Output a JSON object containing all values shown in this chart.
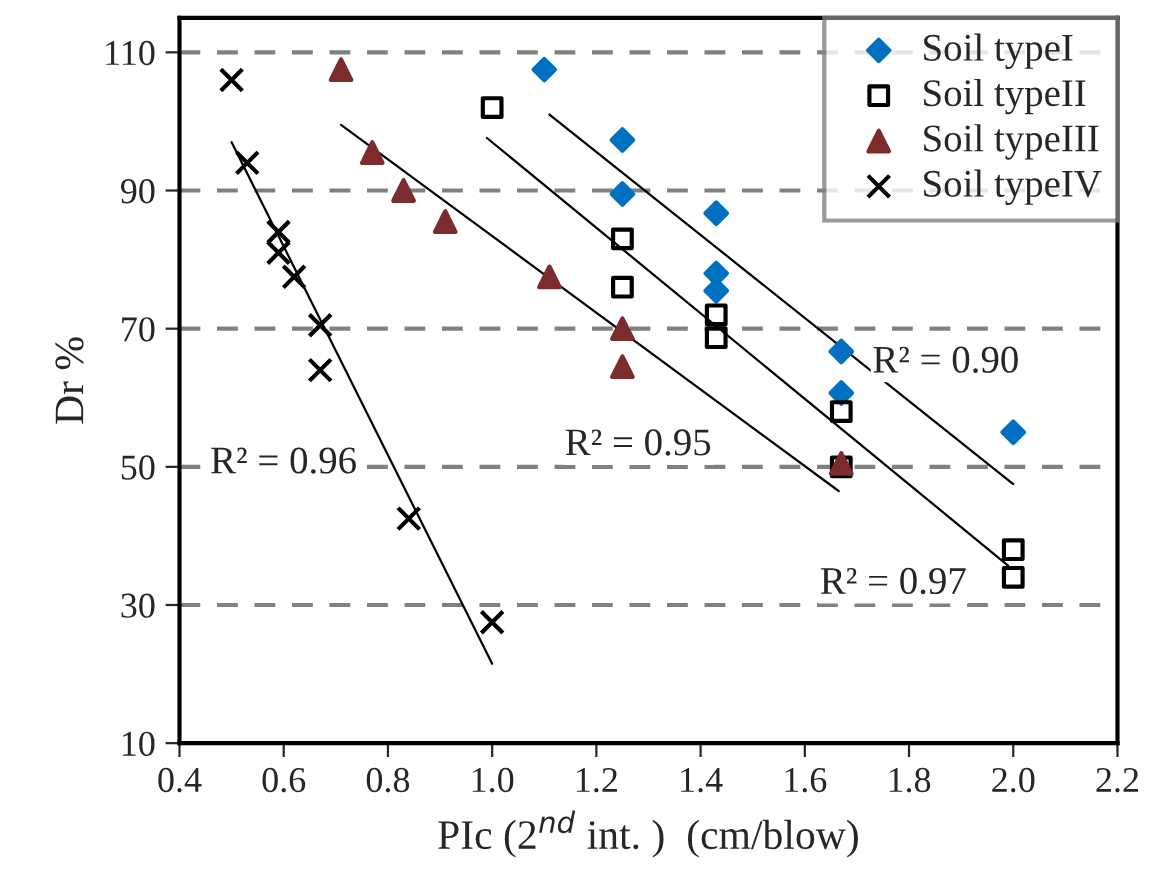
{
  "chart_data": {
    "type": "scatter",
    "xlabel": "PIc (2$^{nd}$ int. )  (cm/blow)",
    "ylabel": "Dr %",
    "xlim": [
      0.4,
      2.2
    ],
    "ylim": [
      10,
      115
    ],
    "xticks": [
      {
        "value": 0.4,
        "label": "0.4"
      },
      {
        "value": 0.6,
        "label": "0.6"
      },
      {
        "value": 0.8,
        "label": "0.8"
      },
      {
        "value": 1.0,
        "label": "1.0"
      },
      {
        "value": 1.2,
        "label": "1.2"
      },
      {
        "value": 1.4,
        "label": "1.4"
      },
      {
        "value": 1.6,
        "label": "1.6"
      },
      {
        "value": 1.8,
        "label": "1.8"
      },
      {
        "value": 2.0,
        "label": "2.0"
      },
      {
        "value": 2.2,
        "label": "2.2"
      }
    ],
    "yticks": [
      10,
      30,
      50,
      70,
      90,
      110
    ],
    "grid": "y",
    "legend": "top right",
    "series": [
      {
        "name": "Soil typeI",
        "color": "#0070c0",
        "marker": "diamond",
        "x": [
          1.1,
          1.25,
          1.25,
          1.43,
          1.43,
          1.43,
          1.67,
          1.67,
          2.0
        ],
        "values": [
          107.5,
          97.3,
          89.5,
          86.7,
          78,
          75.5,
          66.7,
          60.7,
          55
        ]
      },
      {
        "name": "Soil typeII",
        "color": "#000000",
        "marker": "square",
        "x": [
          1.0,
          1.25,
          1.25,
          1.43,
          1.43,
          1.67,
          1.67,
          2.0,
          2.0
        ],
        "values": [
          102,
          83,
          76,
          72,
          68.7,
          58,
          50,
          38,
          34
        ]
      },
      {
        "name": "Soil typeIII",
        "color": "#7b2c2c",
        "marker": "triangle",
        "x": [
          0.71,
          0.77,
          0.83,
          0.91,
          1.11,
          1.25,
          1.25,
          1.67
        ],
        "values": [
          107.5,
          95.5,
          90,
          85.5,
          77.5,
          70,
          64.5,
          50.5
        ]
      },
      {
        "name": "Soil typeIV",
        "color": "#000000",
        "marker": "cross",
        "x": [
          0.5,
          0.53,
          0.59,
          0.59,
          0.62,
          0.67,
          0.67,
          0.84,
          1.0
        ],
        "values": [
          106,
          94,
          84,
          81,
          77.5,
          70.5,
          64,
          42.5,
          27.5
        ]
      },
      {
        "type": "line",
        "color": "#000000",
        "x": [
          1.11,
          2.0
        ],
        "values": [
          101,
          47.5
        ]
      },
      {
        "type": "line",
        "color": "#000000",
        "x": [
          0.99,
          1.99
        ],
        "values": [
          97.6,
          35.7
        ]
      },
      {
        "type": "line",
        "color": "#000000",
        "x": [
          0.71,
          1.665
        ],
        "values": [
          99.5,
          46.5
        ]
      },
      {
        "type": "line",
        "color": "#000000",
        "x": [
          0.5,
          1.0
        ],
        "values": [
          97,
          21.5
        ]
      }
    ],
    "annotations": [
      "R² = 0.90",
      "R² = 0.97",
      "R² = 0.95",
      "R² = 0.96"
    ]
  }
}
